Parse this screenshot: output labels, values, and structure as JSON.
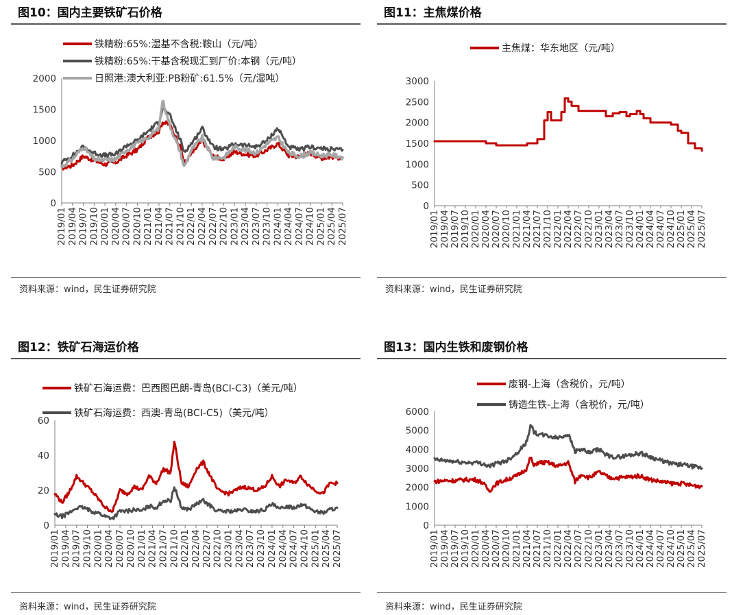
{
  "source_label": "资料来源：wind，民生证券研究院",
  "colors": {
    "red": "#c00000",
    "darkgray": "#4d4d4d",
    "lightgray": "#a6a6a6"
  },
  "chart_data": [
    {
      "id": "fig10",
      "title": "图10：国内主要铁矿石价格",
      "type": "line",
      "ylim": [
        0,
        2000
      ],
      "yticks": [
        0,
        500,
        1000,
        1500,
        2000
      ],
      "xticks": [
        "2019/01",
        "2019/04",
        "2019/07",
        "2019/10",
        "2020/01",
        "2020/04",
        "2020/07",
        "2020/10",
        "2021/01",
        "2021/04",
        "2021/07",
        "2021/10",
        "2022/01",
        "2022/04",
        "2022/07",
        "2022/10",
        "2023/01",
        "2023/04",
        "2023/07",
        "2023/10",
        "2024/01",
        "2024/04",
        "2024/07",
        "2024/10",
        "2025/01",
        "2025/04",
        "2025/07"
      ],
      "series": [
        {
          "name": "铁精粉:65%:湿基不含税:鞍山（元/吨）",
          "color": "#c00000",
          "x": [
            "2019/01",
            "2019/04",
            "2019/07",
            "2019/10",
            "2020/01",
            "2020/04",
            "2020/07",
            "2020/10",
            "2021/01",
            "2021/04",
            "2021/05",
            "2021/07",
            "2021/10",
            "2021/11",
            "2022/01",
            "2022/04",
            "2022/07",
            "2022/10",
            "2023/01",
            "2023/04",
            "2023/07",
            "2023/10",
            "2024/01",
            "2024/04",
            "2024/07",
            "2024/10",
            "2025/01",
            "2025/04",
            "2025/07"
          ],
          "values": [
            560,
            600,
            750,
            680,
            620,
            650,
            760,
            850,
            1050,
            1150,
            1300,
            1250,
            900,
            640,
            780,
            1000,
            750,
            700,
            820,
            780,
            760,
            850,
            950,
            760,
            740,
            800,
            720,
            740,
            720
          ]
        },
        {
          "name": "铁精粉:65%:干基含税现汇到厂价:本钢（元/吨）",
          "color": "#4d4d4d",
          "x": [
            "2019/01",
            "2019/04",
            "2019/07",
            "2019/10",
            "2020/01",
            "2020/04",
            "2020/07",
            "2020/10",
            "2021/01",
            "2021/04",
            "2021/05",
            "2021/07",
            "2021/10",
            "2021/11",
            "2022/01",
            "2022/04",
            "2022/07",
            "2022/10",
            "2023/01",
            "2023/04",
            "2023/07",
            "2023/10",
            "2024/01",
            "2024/04",
            "2024/07",
            "2024/10",
            "2025/01",
            "2025/04",
            "2025/07"
          ],
          "values": [
            650,
            760,
            900,
            800,
            760,
            780,
            920,
            1000,
            1150,
            1300,
            1520,
            1400,
            1000,
            820,
            950,
            1200,
            900,
            850,
            950,
            920,
            900,
            1000,
            1200,
            900,
            850,
            900,
            870,
            860,
            850
          ]
        },
        {
          "name": "日照港:澳大利亚:PB粉矿:61.5%（元/湿吨）",
          "color": "#a6a6a6",
          "x": [
            "2019/01",
            "2019/04",
            "2019/07",
            "2019/10",
            "2020/01",
            "2020/04",
            "2020/07",
            "2020/10",
            "2021/01",
            "2021/04",
            "2021/05",
            "2021/07",
            "2021/10",
            "2021/11",
            "2022/01",
            "2022/04",
            "2022/07",
            "2022/10",
            "2023/01",
            "2023/04",
            "2023/07",
            "2023/10",
            "2024/01",
            "2024/04",
            "2024/07",
            "2024/10",
            "2025/01",
            "2025/04",
            "2025/07"
          ],
          "values": [
            580,
            700,
            900,
            700,
            680,
            700,
            850,
            950,
            1050,
            1200,
            1650,
            1250,
            800,
            580,
            850,
            1050,
            720,
            730,
            900,
            850,
            800,
            950,
            1050,
            800,
            750,
            800,
            760,
            770,
            730
          ]
        }
      ]
    },
    {
      "id": "fig11",
      "title": "图11：主焦煤价格",
      "type": "line",
      "ylim": [
        0,
        3000
      ],
      "yticks": [
        0,
        500,
        1000,
        1500,
        2000,
        2500,
        3000
      ],
      "xticks": [
        "2019/01",
        "2019/04",
        "2019/07",
        "2019/10",
        "2020/01",
        "2020/04",
        "2020/07",
        "2020/10",
        "2021/01",
        "2021/04",
        "2021/07",
        "2021/10",
        "2022/01",
        "2022/04",
        "2022/07",
        "2022/10",
        "2023/01",
        "2023/04",
        "2023/07",
        "2023/10",
        "2024/01",
        "2024/04",
        "2024/07",
        "2024/10",
        "2025/01",
        "2025/04",
        "2025/07"
      ],
      "series": [
        {
          "name": "主焦煤：华东地区（元/吨）",
          "color": "#c00000",
          "x": [
            "2019/01",
            "2019/07",
            "2020/01",
            "2020/04",
            "2020/07",
            "2020/10",
            "2021/01",
            "2021/04",
            "2021/07",
            "2021/09",
            "2021/10",
            "2021/11",
            "2022/01",
            "2022/02",
            "2022/03",
            "2022/04",
            "2022/05",
            "2022/07",
            "2022/10",
            "2023/01",
            "2023/03",
            "2023/05",
            "2023/07",
            "2023/09",
            "2023/10",
            "2023/12",
            "2024/01",
            "2024/02",
            "2024/04",
            "2024/07",
            "2024/10",
            "2024/12",
            "2025/01",
            "2025/03",
            "2025/05",
            "2025/07"
          ],
          "values": [
            1550,
            1550,
            1550,
            1500,
            1450,
            1450,
            1450,
            1500,
            1600,
            2050,
            2250,
            2050,
            2050,
            2250,
            2580,
            2500,
            2400,
            2280,
            2280,
            2280,
            2150,
            2220,
            2250,
            2150,
            2200,
            2280,
            2200,
            2100,
            2000,
            2000,
            1950,
            1800,
            1750,
            1500,
            1380,
            1320
          ]
        }
      ]
    },
    {
      "id": "fig12",
      "title": "图12：铁矿石海运价格",
      "type": "line",
      "ylim": [
        0,
        60
      ],
      "yticks": [
        0,
        20,
        40,
        60
      ],
      "xticks": [
        "2019/01",
        "2019/04",
        "2019/07",
        "2019/10",
        "2020/01",
        "2020/04",
        "2020/07",
        "2020/10",
        "2021/01",
        "2021/04",
        "2021/07",
        "2021/10",
        "2022/01",
        "2022/04",
        "2022/07",
        "2022/10",
        "2023/01",
        "2023/04",
        "2023/07",
        "2023/10",
        "2024/01",
        "2024/04",
        "2024/07",
        "2024/10",
        "2025/01",
        "2025/04",
        "2025/07"
      ],
      "series": [
        {
          "name": "铁矿石海运费：巴西图巴朗-青岛(BCI-C3)（美元/吨）",
          "color": "#c00000",
          "x": [
            "2019/01",
            "2019/03",
            "2019/05",
            "2019/07",
            "2019/09",
            "2019/11",
            "2020/01",
            "2020/03",
            "2020/05",
            "2020/07",
            "2020/09",
            "2020/11",
            "2021/01",
            "2021/03",
            "2021/05",
            "2021/07",
            "2021/09",
            "2021/10",
            "2021/12",
            "2022/02",
            "2022/04",
            "2022/06",
            "2022/08",
            "2022/10",
            "2023/01",
            "2023/03",
            "2023/05",
            "2023/07",
            "2023/09",
            "2023/11",
            "2024/01",
            "2024/03",
            "2024/05",
            "2024/07",
            "2024/09",
            "2024/11",
            "2025/01",
            "2025/03",
            "2025/05",
            "2025/07"
          ],
          "values": [
            18,
            13,
            19,
            28,
            24,
            20,
            15,
            10,
            8,
            20,
            18,
            22,
            20,
            28,
            24,
            32,
            30,
            48,
            24,
            22,
            32,
            36,
            28,
            20,
            18,
            20,
            22,
            21,
            20,
            22,
            28,
            22,
            26,
            24,
            28,
            23,
            20,
            18,
            24,
            24
          ]
        },
        {
          "name": "铁矿石海运费：西澳-青岛(BCI-C5)（美元/吨）",
          "color": "#4d4d4d",
          "x": [
            "2019/01",
            "2019/03",
            "2019/05",
            "2019/07",
            "2019/09",
            "2019/11",
            "2020/01",
            "2020/03",
            "2020/05",
            "2020/07",
            "2020/09",
            "2020/11",
            "2021/01",
            "2021/03",
            "2021/05",
            "2021/07",
            "2021/09",
            "2021/10",
            "2021/12",
            "2022/02",
            "2022/04",
            "2022/06",
            "2022/08",
            "2022/10",
            "2023/01",
            "2023/03",
            "2023/05",
            "2023/07",
            "2023/09",
            "2023/11",
            "2024/01",
            "2024/03",
            "2024/05",
            "2024/07",
            "2024/09",
            "2024/11",
            "2025/01",
            "2025/03",
            "2025/05",
            "2025/07"
          ],
          "values": [
            6,
            5,
            7,
            10,
            10,
            8,
            7,
            5,
            4,
            8,
            8,
            9,
            8,
            11,
            10,
            14,
            14,
            22,
            10,
            9,
            12,
            14,
            11,
            8,
            8,
            8,
            9,
            8,
            8,
            9,
            12,
            9,
            11,
            10,
            12,
            10,
            8,
            7,
            9,
            10
          ]
        }
      ]
    },
    {
      "id": "fig13",
      "title": "图13：国内生铁和废钢价格",
      "type": "line",
      "ylim": [
        0,
        6000
      ],
      "yticks": [
        0,
        1000,
        2000,
        3000,
        4000,
        5000,
        6000
      ],
      "xticks": [
        "2019/01",
        "2019/04",
        "2019/07",
        "2019/10",
        "2020/01",
        "2020/04",
        "2020/07",
        "2020/10",
        "2021/01",
        "2021/04",
        "2021/07",
        "2021/10",
        "2022/01",
        "2022/04",
        "2022/07",
        "2022/10",
        "2023/01",
        "2023/04",
        "2023/07",
        "2023/10",
        "2024/01",
        "2024/04",
        "2024/07",
        "2024/10",
        "2025/01",
        "2025/04",
        "2025/07"
      ],
      "series": [
        {
          "name": "废钢-上海（含税价，元/吨）",
          "color": "#c00000",
          "x": [
            "2019/01",
            "2019/04",
            "2019/07",
            "2019/10",
            "2020/01",
            "2020/03",
            "2020/05",
            "2020/07",
            "2020/10",
            "2021/01",
            "2021/04",
            "2021/05",
            "2021/06",
            "2021/07",
            "2021/10",
            "2022/01",
            "2022/04",
            "2022/06",
            "2022/08",
            "2022/10",
            "2023/01",
            "2023/04",
            "2023/07",
            "2023/10",
            "2024/01",
            "2024/04",
            "2024/07",
            "2024/10",
            "2025/01",
            "2025/04",
            "2025/07"
          ],
          "values": [
            2300,
            2350,
            2350,
            2400,
            2400,
            2250,
            1800,
            2200,
            2400,
            2600,
            3000,
            3600,
            3100,
            3300,
            3300,
            3100,
            3300,
            2300,
            2700,
            2500,
            2800,
            2500,
            2500,
            2550,
            2600,
            2400,
            2300,
            2200,
            2200,
            2100,
            2050
          ]
        },
        {
          "name": "铸造生铁-上海（含税价，元/吨）",
          "color": "#4d4d4d",
          "x": [
            "2019/01",
            "2019/04",
            "2019/07",
            "2019/10",
            "2020/01",
            "2020/03",
            "2020/05",
            "2020/07",
            "2020/10",
            "2021/01",
            "2021/04",
            "2021/05",
            "2021/06",
            "2021/07",
            "2021/10",
            "2022/01",
            "2022/04",
            "2022/06",
            "2022/08",
            "2022/10",
            "2023/01",
            "2023/04",
            "2023/07",
            "2023/10",
            "2024/01",
            "2024/04",
            "2024/07",
            "2024/10",
            "2025/01",
            "2025/04",
            "2025/07"
          ],
          "values": [
            3450,
            3400,
            3350,
            3300,
            3300,
            3250,
            3100,
            3250,
            3400,
            3800,
            4400,
            5350,
            4900,
            4800,
            4700,
            4600,
            4800,
            3900,
            4000,
            3800,
            4000,
            3600,
            3600,
            3700,
            3800,
            3600,
            3400,
            3250,
            3200,
            3100,
            3000
          ]
        }
      ]
    }
  ]
}
